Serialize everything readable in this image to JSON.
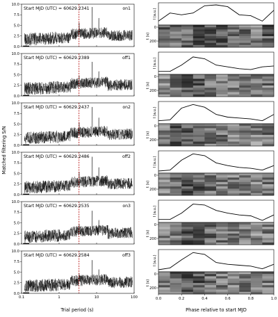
{
  "figure": {
    "left_ylabel": "Matched filtering S/N",
    "left_xlabel": "Trial period (s)",
    "right_xlabel": "Phase relative to start MJD",
    "profile_ylabel": "I (a.u.)",
    "time_ylabel": "t (s)"
  },
  "chart_data": [
    {
      "type": "line",
      "role": "periodogram",
      "xscale": "log",
      "xlim": [
        0.1,
        100
      ],
      "ylim": [
        0,
        10
      ],
      "x_ticks": [
        "0.1",
        "1",
        "10",
        "100"
      ],
      "y_ticks": [
        "0.0",
        "2.5",
        "5.0",
        "7.5",
        "10.0"
      ],
      "vline_period_s": 3.4,
      "panels": [
        {
          "annotation": "Start MJD (UTC) = 60629.2341",
          "tag": "on1",
          "peak_sn": 9.3
        },
        {
          "annotation": "Start MJD (UTC) = 60629.2389",
          "tag": "off1",
          "peak_sn": 8.0
        },
        {
          "annotation": "Start MJD (UTC) = 60629.2437",
          "tag": "on2",
          "peak_sn": 9.0
        },
        {
          "annotation": "Start MJD (UTC) = 60629.2486",
          "tag": "off2",
          "peak_sn": 8.9
        },
        {
          "annotation": "Start MJD (UTC) = 60629.2535",
          "tag": "on3",
          "peak_sn": 7.8
        },
        {
          "annotation": "Start MJD (UTC) = 60629.2584",
          "tag": "off3",
          "peak_sn": 7.8
        }
      ]
    },
    {
      "type": "line",
      "role": "pulse_profile",
      "xlim": [
        0,
        1
      ],
      "x_ticks": [
        "0.0",
        "0.2",
        "0.4",
        "0.6",
        "0.8",
        "1.0"
      ],
      "time_ticks": [
        "0",
        "200"
      ],
      "phase_bins": [
        0.0,
        0.1,
        0.2,
        0.3,
        0.4,
        0.5,
        0.6,
        0.7,
        0.8,
        0.9,
        1.0
      ],
      "profiles": [
        [
          0.1,
          0.55,
          0.45,
          0.55,
          0.95,
          1.0,
          0.9,
          0.45,
          0.4,
          0.1,
          0.7
        ],
        [
          0.05,
          0.05,
          0.4,
          0.85,
          0.75,
          0.4,
          0.3,
          0.2,
          0.15,
          0.3,
          0.35
        ],
        [
          0.05,
          0.1,
          0.75,
          0.95,
          0.8,
          0.4,
          0.25,
          0.2,
          0.15,
          0.05,
          0.4
        ],
        [
          0.0,
          0.05,
          0.6,
          0.95,
          0.85,
          0.45,
          0.3,
          0.2,
          0.15,
          0.05,
          0.3
        ],
        [
          0.05,
          0.05,
          0.4,
          0.9,
          0.85,
          0.55,
          0.4,
          0.3,
          0.25,
          0.0,
          0.3
        ],
        [
          0.0,
          0.1,
          0.55,
          0.95,
          0.85,
          0.4,
          0.3,
          0.25,
          0.2,
          0.05,
          0.3
        ]
      ]
    }
  ]
}
